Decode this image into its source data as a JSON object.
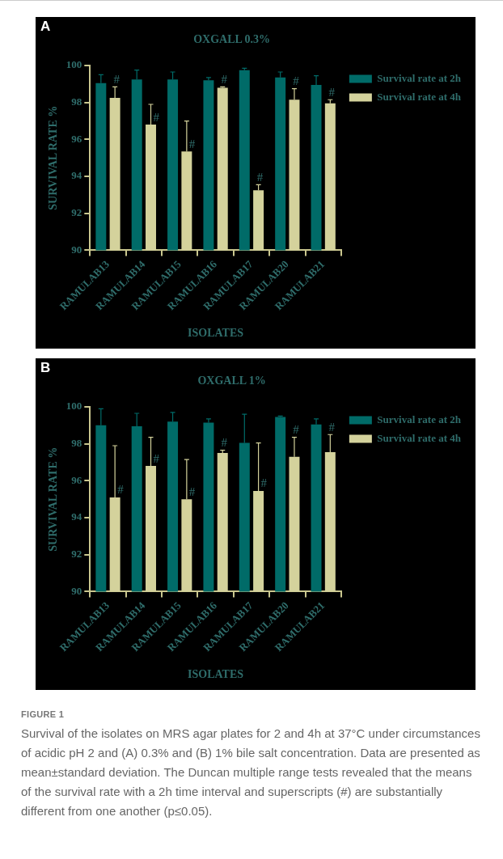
{
  "chart_data": [
    {
      "type": "bar",
      "title": "OXGALL 0.3%",
      "xlabel": "ISOLATES",
      "ylabel": "SURVIVAL RATE %",
      "annotations": [
        "A"
      ],
      "categories": [
        "RAMULAB13",
        "RAMULAB14",
        "RAMULAB15",
        "RAMULAB16",
        "RAMULAB17",
        "RAMULAB20",
        "RAMULAB21"
      ],
      "series": [
        {
          "name": "Survival rate at 2h",
          "color": "#006b68",
          "values": [
            99.05,
            99.25,
            99.25,
            99.2,
            99.75,
            99.35,
            98.95
          ],
          "errors": [
            [
              99.05,
              99.5
            ],
            [
              99.25,
              99.75
            ],
            [
              99.25,
              99.65
            ],
            [
              99.2,
              99.35
            ],
            [
              99.75,
              99.85
            ],
            [
              99.35,
              99.65
            ],
            [
              98.95,
              99.45
            ]
          ]
        },
        {
          "name": "Survival rate at 4h",
          "color": "#d4d29c",
          "values": [
            98.25,
            96.8,
            95.35,
            98.8,
            93.25,
            98.15,
            97.95
          ],
          "errors": [
            [
              98.25,
              98.85
            ],
            [
              96.8,
              97.9
            ],
            [
              95.35,
              97.0
            ],
            [
              98.8,
              98.85
            ],
            [
              93.25,
              93.55
            ],
            [
              98.15,
              98.75
            ],
            [
              97.95,
              98.15
            ]
          ],
          "value_labels": [
            "#",
            "#",
            "#",
            "#",
            "#",
            "#",
            "#"
          ]
        }
      ],
      "ylim": [
        90,
        100
      ],
      "yticks": [
        90,
        92,
        94,
        96,
        98,
        100
      ],
      "grid": false,
      "legend": "top right"
    },
    {
      "type": "bar",
      "title": "OXGALL 1%",
      "xlabel": "ISOLATES",
      "ylabel": "SURVIVAL RATE %",
      "annotations": [
        "B",
        "FIGURE 1",
        "Survival of the isolates on MRS agar plates for 2 and 4h at 37°C under circumstances of acidic pH 2 and (A) 0.3% and (B) 1% bile salt concentration. Data are presented as mean±standard deviation. The Duncan multiple range tests revealed that the means of the survival rate with a 2h time interval and superscripts (#) are substantially different from one another (p≤0.05)."
      ],
      "categories": [
        "RAMULAB13",
        "RAMULAB14",
        "RAMULAB15",
        "RAMULAB16",
        "RAMULAB17",
        "RAMULAB20",
        "RAMULAB21"
      ],
      "series": [
        {
          "name": "Survival rate at 2h",
          "color": "#006b68",
          "values": [
            99.0,
            98.95,
            99.2,
            99.15,
            98.05,
            99.45,
            99.05
          ],
          "errors": [
            [
              99.0,
              99.9
            ],
            [
              98.95,
              99.65
            ],
            [
              99.2,
              99.7
            ],
            [
              99.15,
              99.35
            ],
            [
              98.05,
              99.6
            ],
            [
              99.45,
              99.5
            ],
            [
              99.05,
              99.35
            ]
          ]
        },
        {
          "name": "Survival rate at 4h",
          "color": "#d4d29c",
          "values": [
            95.1,
            96.8,
            95.0,
            97.5,
            95.45,
            97.3,
            97.55
          ],
          "errors": [
            [
              95.1,
              97.9
            ],
            [
              96.8,
              98.35
            ],
            [
              95.0,
              97.15
            ],
            [
              97.5,
              97.65
            ],
            [
              95.45,
              98.05
            ],
            [
              97.3,
              98.35
            ],
            [
              97.55,
              98.5
            ]
          ],
          "value_labels": [
            "#",
            "#",
            "#",
            "#",
            "#",
            "#",
            "#"
          ]
        }
      ],
      "ylim": [
        90,
        100
      ],
      "yticks": [
        90,
        92,
        94,
        96,
        98,
        100
      ],
      "grid": false,
      "legend": "top right"
    }
  ]
}
